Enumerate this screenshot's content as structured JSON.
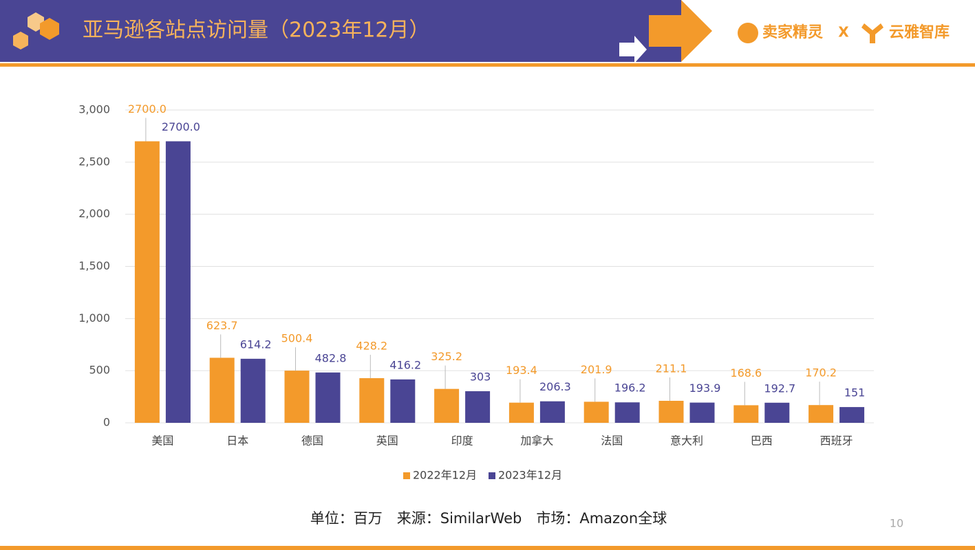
{
  "header": {
    "title": "亚马逊各站点访问量（2023年12月）",
    "brand_left": "卖家精灵",
    "separator": "X",
    "brand_right": "云雅智库"
  },
  "chart_data": {
    "type": "bar",
    "categories": [
      "美国",
      "日本",
      "德国",
      "英国",
      "印度",
      "加拿大",
      "法国",
      "意大利",
      "巴西",
      "西班牙"
    ],
    "series": [
      {
        "name": "2022年12月",
        "color": "#F39A2B",
        "values": [
          2700,
          623.7,
          500.4,
          428.2,
          325.2,
          193.4,
          201.9,
          211.1,
          168.6,
          170.2
        ],
        "value_labels": [
          "2700.0",
          "623.7",
          "500.4",
          "428.2",
          "325.2",
          "193.4",
          "201.9",
          "211.1",
          "168.6",
          "170.2"
        ]
      },
      {
        "name": "2023年12月",
        "color": "#4A4594",
        "values": [
          2700,
          614.2,
          482.8,
          416.2,
          303,
          206.3,
          196.2,
          193.9,
          192.7,
          151
        ],
        "value_labels": [
          "2700.0",
          "614.2",
          "482.8",
          "416.2",
          "303",
          "206.3",
          "196.2",
          "193.9",
          "192.7",
          "151"
        ]
      }
    ],
    "ylim": [
      0,
      3000
    ],
    "yticks": [
      0,
      500,
      {
        "value": 1000,
        "label": "1,000"
      },
      {
        "value": 1500,
        "label": "1,500"
      },
      {
        "value": 2000,
        "label": "2,000"
      },
      {
        "value": 2500,
        "label": "2,500"
      },
      {
        "value": 3000,
        "label": "3,000"
      }
    ],
    "grid": true,
    "legend": "bottom"
  },
  "footer": {
    "note": "单位：百万　来源：SimilarWeb　市场：Amazon全球",
    "page": "10"
  }
}
